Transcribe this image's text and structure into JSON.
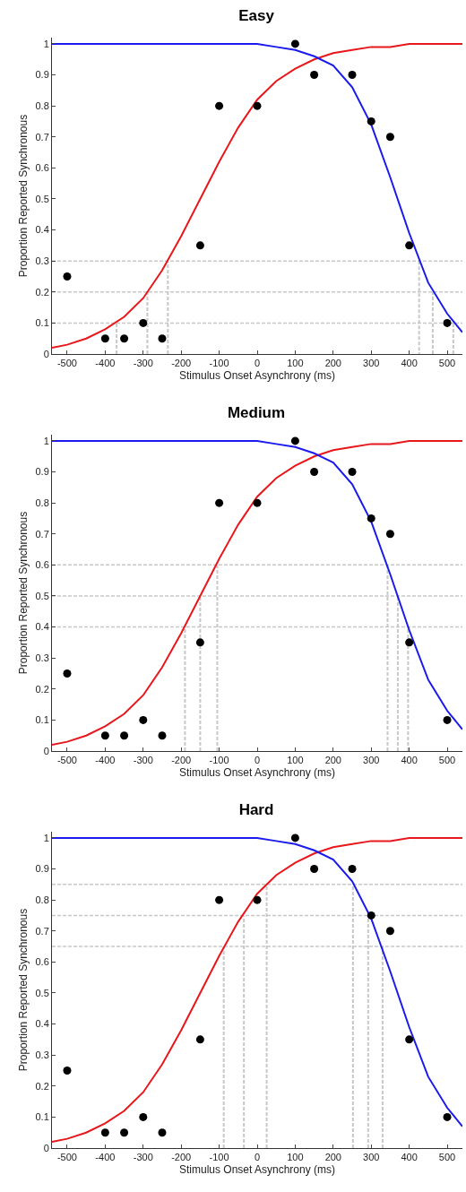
{
  "chart_data": [
    {
      "type": "scatter",
      "title": "Easy",
      "xlabel": "Stimulus Onset Asynchrony (ms)",
      "ylabel": "Proportion Reported Synchronous",
      "xlim": [
        -540,
        540
      ],
      "ylim": [
        0,
        1.02
      ],
      "xticks": [
        -500,
        -400,
        -300,
        -200,
        -100,
        0,
        100,
        200,
        300,
        400,
        500
      ],
      "yticks": [
        0,
        0.1,
        0.2,
        0.3,
        0.4,
        0.5,
        0.6,
        0.7,
        0.8,
        0.9,
        1
      ],
      "ref_lines": [
        {
          "axis": "y",
          "value": 0.1,
          "color": "#c8c8c8",
          "line_style": "dashed"
        },
        {
          "axis": "y",
          "value": 0.2,
          "color": "#c8c8c8",
          "line_style": "dashed"
        },
        {
          "axis": "y",
          "value": 0.3,
          "color": "#c8c8c8",
          "line_style": "dashed"
        }
      ],
      "series": [
        {
          "type": "line",
          "color": "#c8c8c8",
          "line_style": "dashed",
          "x": [
            -370,
            -370
          ],
          "values": [
            0,
            0.1
          ]
        },
        {
          "type": "line",
          "color": "#c8c8c8",
          "line_style": "dashed",
          "x": [
            -289,
            -289
          ],
          "values": [
            0,
            0.2
          ]
        },
        {
          "type": "line",
          "color": "#c8c8c8",
          "line_style": "dashed",
          "x": [
            -235,
            -235
          ],
          "values": [
            0,
            0.3
          ]
        },
        {
          "type": "line",
          "color": "#c8c8c8",
          "line_style": "dashed",
          "x": [
            426,
            426
          ],
          "values": [
            0.3,
            0
          ]
        },
        {
          "type": "line",
          "color": "#c8c8c8",
          "line_style": "dashed",
          "x": [
            462,
            462
          ],
          "values": [
            0,
            0.2
          ]
        },
        {
          "type": "line",
          "color": "#c8c8c8",
          "line_style": "dashed",
          "x": [
            516,
            516
          ],
          "values": [
            0,
            0.1
          ]
        },
        {
          "type": "line",
          "color": "#e8171b",
          "x": [
            -540,
            -500,
            -450,
            -400,
            -350,
            -300,
            -250,
            -200,
            -150,
            -100,
            -50,
            0,
            50,
            100,
            150,
            200,
            250,
            300,
            350,
            400,
            450,
            500,
            540
          ],
          "values": [
            0.02,
            0.03,
            0.05,
            0.08,
            0.12,
            0.18,
            0.27,
            0.38,
            0.5,
            0.62,
            0.73,
            0.82,
            0.88,
            0.92,
            0.95,
            0.97,
            0.98,
            0.99,
            0.99,
            1,
            1,
            1,
            1
          ]
        },
        {
          "type": "line",
          "color": "#1a1aee",
          "x": [
            -540,
            -200,
            -100,
            0,
            50,
            100,
            150,
            200,
            250,
            300,
            350,
            400,
            450,
            500,
            540
          ],
          "values": [
            1,
            1,
            1,
            1,
            0.99,
            0.98,
            0.96,
            0.93,
            0.86,
            0.74,
            0.57,
            0.39,
            0.23,
            0.13,
            0.07
          ]
        },
        {
          "color": "#000000",
          "marker": "circle",
          "x": [
            -500,
            -400,
            -350,
            -300,
            -250,
            -150,
            -100,
            0,
            100,
            150,
            250,
            300,
            350,
            400,
            500
          ],
          "values": [
            0.25,
            0.05,
            0.05,
            0.1,
            0.05,
            0.35,
            0.8,
            0.8,
            1,
            0.9,
            0.9,
            0.75,
            0.7,
            0.35,
            0.1
          ]
        }
      ]
    },
    {
      "type": "scatter",
      "title": "Medium",
      "xlabel": "Stimulus Onset Asynchrony (ms)",
      "ylabel": "Proportion Reported Synchronous",
      "xlim": [
        -540,
        540
      ],
      "ylim": [
        0,
        1.02
      ],
      "xticks": [
        -500,
        -400,
        -300,
        -200,
        -100,
        0,
        100,
        200,
        300,
        400,
        500
      ],
      "yticks": [
        0,
        0.1,
        0.2,
        0.3,
        0.4,
        0.5,
        0.6,
        0.7,
        0.8,
        0.9,
        1
      ],
      "ref_lines": [
        {
          "axis": "y",
          "value": 0.4,
          "color": "#c8c8c8",
          "line_style": "dashed"
        },
        {
          "axis": "y",
          "value": 0.5,
          "color": "#c8c8c8",
          "line_style": "dashed"
        },
        {
          "axis": "y",
          "value": 0.6,
          "color": "#c8c8c8",
          "line_style": "dashed"
        }
      ],
      "series": [
        {
          "type": "line",
          "color": "#c8c8c8",
          "line_style": "dashed",
          "x": [
            -190,
            -190
          ],
          "values": [
            0,
            0.4
          ]
        },
        {
          "type": "line",
          "color": "#c8c8c8",
          "line_style": "dashed",
          "x": [
            -150,
            -150
          ],
          "values": [
            0,
            0.5
          ]
        },
        {
          "type": "line",
          "color": "#c8c8c8",
          "line_style": "dashed",
          "x": [
            -105,
            -105
          ],
          "values": [
            0,
            0.6
          ]
        },
        {
          "type": "line",
          "color": "#c8c8c8",
          "line_style": "dashed",
          "x": [
            343,
            343
          ],
          "values": [
            0,
            0.6
          ]
        },
        {
          "type": "line",
          "color": "#c8c8c8",
          "line_style": "dashed",
          "x": [
            370,
            370
          ],
          "values": [
            0,
            0.5
          ]
        },
        {
          "type": "line",
          "color": "#c8c8c8",
          "line_style": "dashed",
          "x": [
            397,
            397
          ],
          "values": [
            0,
            0.4
          ]
        },
        {
          "type": "line",
          "color": "#e8171b",
          "x": [
            -540,
            -500,
            -450,
            -400,
            -350,
            -300,
            -250,
            -200,
            -150,
            -100,
            -50,
            0,
            50,
            100,
            150,
            200,
            250,
            300,
            350,
            400,
            450,
            500,
            540
          ],
          "values": [
            0.02,
            0.03,
            0.05,
            0.08,
            0.12,
            0.18,
            0.27,
            0.38,
            0.5,
            0.62,
            0.73,
            0.82,
            0.88,
            0.92,
            0.95,
            0.97,
            0.98,
            0.99,
            0.99,
            1,
            1,
            1,
            1
          ]
        },
        {
          "type": "line",
          "color": "#1a1aee",
          "x": [
            -540,
            -200,
            -100,
            0,
            50,
            100,
            150,
            200,
            250,
            300,
            350,
            400,
            450,
            500,
            540
          ],
          "values": [
            1,
            1,
            1,
            1,
            0.99,
            0.98,
            0.96,
            0.93,
            0.86,
            0.74,
            0.57,
            0.39,
            0.23,
            0.13,
            0.07
          ]
        },
        {
          "color": "#000000",
          "marker": "circle",
          "x": [
            -500,
            -400,
            -350,
            -300,
            -250,
            -150,
            -100,
            0,
            100,
            150,
            250,
            300,
            350,
            400,
            500
          ],
          "values": [
            0.25,
            0.05,
            0.05,
            0.1,
            0.05,
            0.35,
            0.8,
            0.8,
            1,
            0.9,
            0.9,
            0.75,
            0.7,
            0.35,
            0.1
          ]
        }
      ]
    },
    {
      "type": "scatter",
      "title": "Hard",
      "xlabel": "Stimulus Onset Asynchrony (ms)",
      "ylabel": "Proportion Reported Synchronous",
      "xlim": [
        -540,
        540
      ],
      "ylim": [
        0,
        1.02
      ],
      "xticks": [
        -500,
        -400,
        -300,
        -200,
        -100,
        0,
        100,
        200,
        300,
        400,
        500
      ],
      "yticks": [
        0,
        0.1,
        0.2,
        0.3,
        0.4,
        0.5,
        0.6,
        0.7,
        0.8,
        0.9,
        1
      ],
      "ref_lines": [
        {
          "axis": "y",
          "value": 0.65,
          "color": "#c8c8c8",
          "line_style": "dashed"
        },
        {
          "axis": "y",
          "value": 0.75,
          "color": "#c8c8c8",
          "line_style": "dashed"
        },
        {
          "axis": "y",
          "value": 0.85,
          "color": "#c8c8c8",
          "line_style": "dashed"
        }
      ],
      "series": [
        {
          "type": "line",
          "color": "#c8c8c8",
          "line_style": "dashed",
          "x": [
            -88,
            -88
          ],
          "values": [
            0,
            0.65
          ]
        },
        {
          "type": "line",
          "color": "#c8c8c8",
          "line_style": "dashed",
          "x": [
            -35,
            -35
          ],
          "values": [
            0,
            0.75
          ]
        },
        {
          "type": "line",
          "color": "#c8c8c8",
          "line_style": "dashed",
          "x": [
            25,
            25
          ],
          "values": [
            0,
            0.85
          ]
        },
        {
          "type": "line",
          "color": "#c8c8c8",
          "line_style": "dashed",
          "x": [
            252,
            252
          ],
          "values": [
            0,
            0.85
          ]
        },
        {
          "type": "line",
          "color": "#c8c8c8",
          "line_style": "dashed",
          "x": [
            292,
            292
          ],
          "values": [
            0,
            0.75
          ]
        },
        {
          "type": "line",
          "color": "#c8c8c8",
          "line_style": "dashed",
          "x": [
            330,
            330
          ],
          "values": [
            0,
            0.65
          ]
        },
        {
          "type": "line",
          "color": "#e8171b",
          "x": [
            -540,
            -500,
            -450,
            -400,
            -350,
            -300,
            -250,
            -200,
            -150,
            -100,
            -50,
            0,
            50,
            100,
            150,
            200,
            250,
            300,
            350,
            400,
            450,
            500,
            540
          ],
          "values": [
            0.02,
            0.03,
            0.05,
            0.08,
            0.12,
            0.18,
            0.27,
            0.38,
            0.5,
            0.62,
            0.73,
            0.82,
            0.88,
            0.92,
            0.95,
            0.97,
            0.98,
            0.99,
            0.99,
            1,
            1,
            1,
            1
          ]
        },
        {
          "type": "line",
          "color": "#1a1aee",
          "x": [
            -540,
            -200,
            -100,
            0,
            50,
            100,
            150,
            200,
            250,
            300,
            350,
            400,
            450,
            500,
            540
          ],
          "values": [
            1,
            1,
            1,
            1,
            0.99,
            0.98,
            0.96,
            0.93,
            0.86,
            0.74,
            0.57,
            0.39,
            0.23,
            0.13,
            0.07
          ]
        },
        {
          "color": "#000000",
          "marker": "circle",
          "x": [
            -500,
            -400,
            -350,
            -300,
            -250,
            -150,
            -100,
            0,
            100,
            150,
            250,
            300,
            350,
            400,
            500
          ],
          "values": [
            0.25,
            0.05,
            0.05,
            0.1,
            0.05,
            0.35,
            0.8,
            0.8,
            1,
            0.9,
            0.9,
            0.75,
            0.7,
            0.35,
            0.1
          ]
        }
      ]
    }
  ]
}
